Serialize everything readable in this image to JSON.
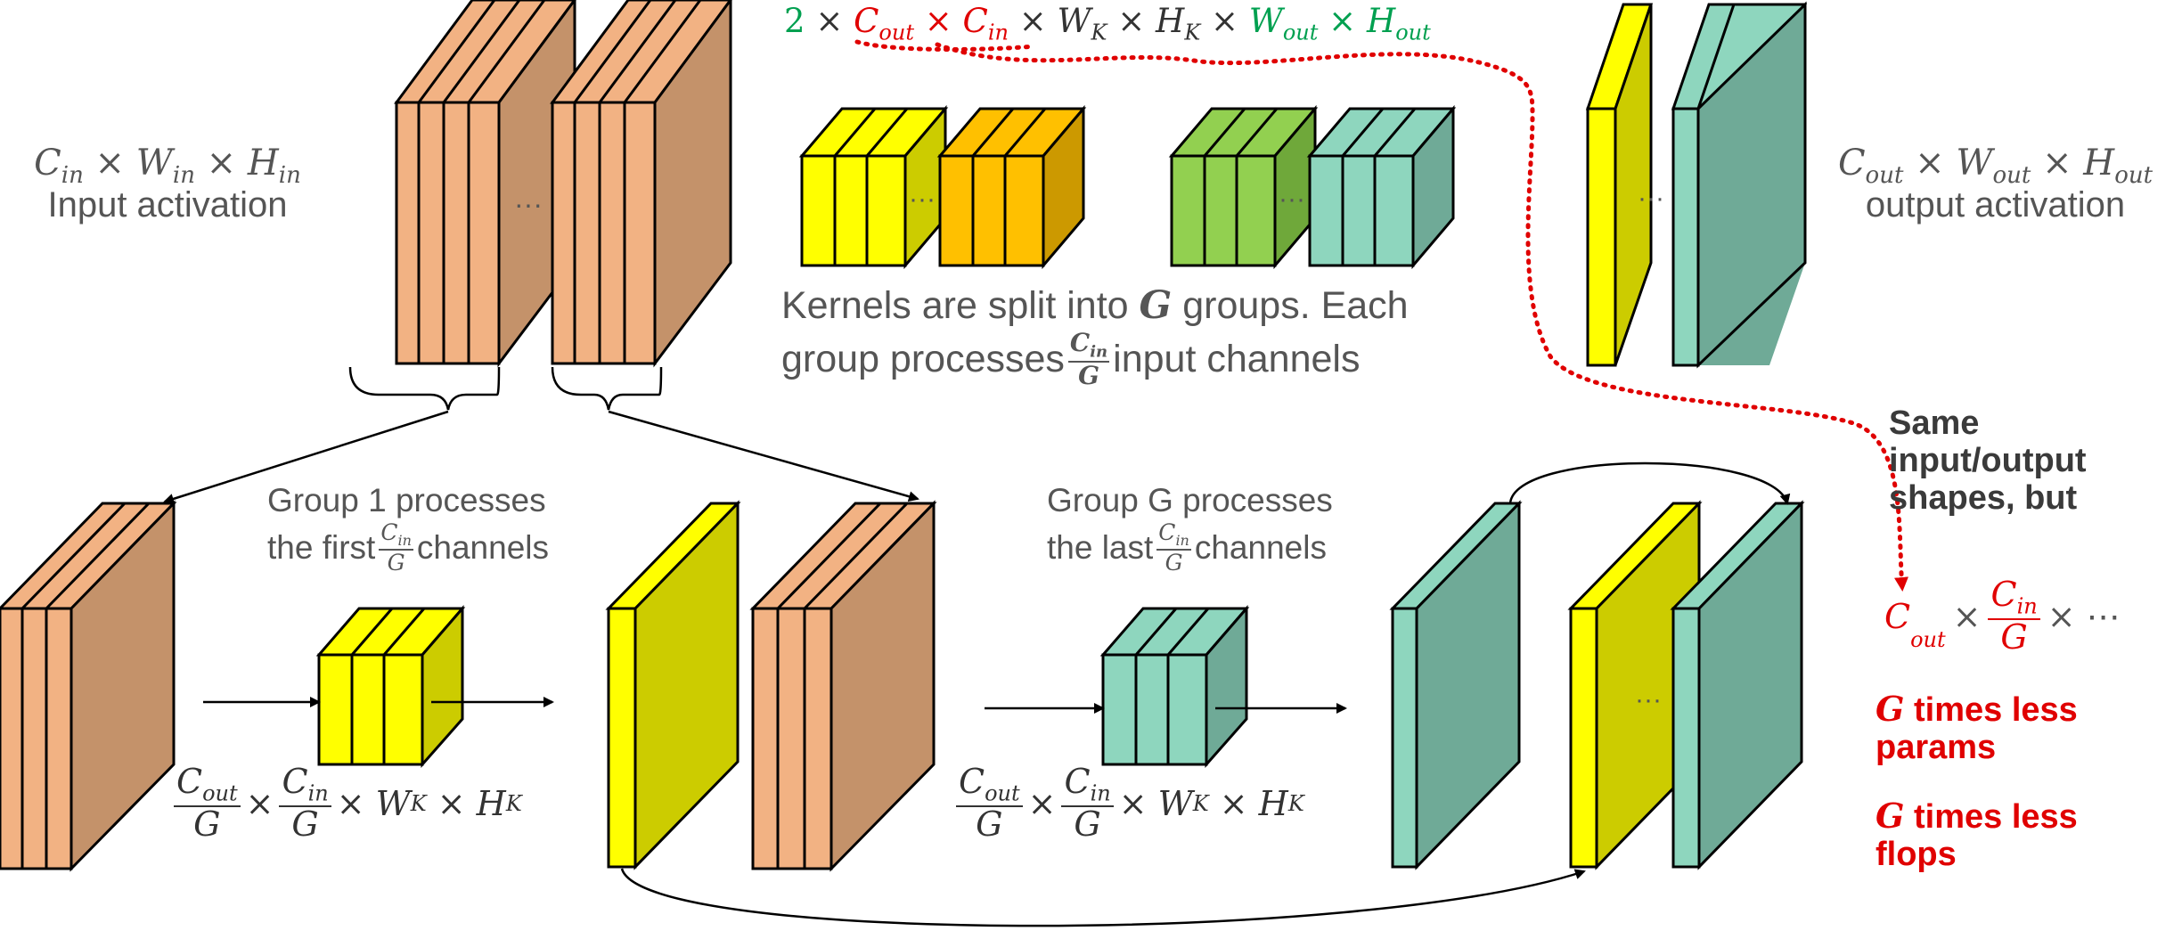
{
  "colors": {
    "peach_front": "#F2B283",
    "peach_side": "#C4926A",
    "yellow_front": "#FFFF00",
    "yellow_side": "#CCCC00",
    "orange_front": "#FFC000",
    "orange_side": "#CC9900",
    "green_front": "#92D050",
    "green_side": "#6FA83A",
    "teal_front": "#8ED6BE",
    "teal_side": "#6FAA97",
    "red": "#E00000",
    "formula_green": "#00A050",
    "gray_text": "#555555",
    "dark_text": "#3A3A3A"
  },
  "top_formula": {
    "two": "2",
    "times": "×",
    "c": "C",
    "out": "out",
    "in": "in",
    "w": "W",
    "h": "H",
    "k": "K"
  },
  "input_label": {
    "formula_c": "C",
    "formula_sub_in": "in",
    "times": "×",
    "w": "W",
    "h": "H",
    "caption": "Input activation"
  },
  "output_label": {
    "c": "C",
    "sub_out": "out",
    "times": "×",
    "w": "W",
    "h": "H",
    "caption": "output activation"
  },
  "kernels_caption": {
    "line1_pre": "Kernels are split into ",
    "line1_g": "G",
    "line1_post": " groups. Each",
    "line2_pre": "group processes ",
    "frac_num_c": "C",
    "frac_num_sub": "in",
    "frac_den": "G",
    "line2_post": " input channels"
  },
  "group1_caption": {
    "line1": "Group 1 processes",
    "line2_pre": "the first ",
    "frac_num_c": "C",
    "frac_num_sub": "in",
    "frac_den": "G",
    "line2_post": " channels"
  },
  "groupG_caption": {
    "line1": "Group G processes",
    "line2_pre": "the last ",
    "frac_num_c": "C",
    "frac_num_sub": "in",
    "frac_den": "G",
    "line2_post": " channels"
  },
  "kernel_formula": {
    "num1_c": "C",
    "num1_sub": "out",
    "den": "G",
    "times": "×",
    "num2_c": "C",
    "num2_sub": "in",
    "w": "W",
    "h": "H",
    "k": "K"
  },
  "right_note": {
    "same1": "Same",
    "same2": "input/output",
    "same3": "shapes, but",
    "c": "C",
    "sub_out": "out",
    "times": "×",
    "frac_num_c": "C",
    "frac_num_sub": "in",
    "frac_den": "G",
    "ellipsis": "× ⋯",
    "g": "G",
    "params1": " times less",
    "params2": "params",
    "flops1": " times less",
    "flops2": "flops"
  },
  "ellipsis": "···"
}
